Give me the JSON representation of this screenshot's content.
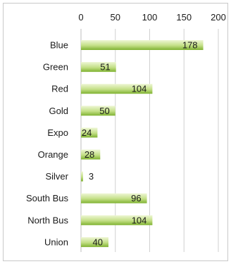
{
  "chart_data": {
    "type": "bar",
    "orientation": "horizontal",
    "title": "",
    "xlabel": "",
    "ylabel": "",
    "xlim": [
      0,
      200
    ],
    "x_ticks": [
      0,
      50,
      100,
      150,
      200
    ],
    "x_tick_labels": [
      "0",
      "50",
      "100",
      "150",
      "200"
    ],
    "x_axis_position": "top",
    "grid": true,
    "legend": "none",
    "categories": [
      "Blue",
      "Green",
      "Red",
      "Gold",
      "Expo",
      "Orange",
      "Silver",
      "South Bus",
      "North Bus",
      "Union"
    ],
    "values": [
      178,
      51,
      104,
      50,
      24,
      28,
      3,
      96,
      104,
      40
    ],
    "data_labels": [
      "178",
      "51",
      "104",
      "50",
      "24",
      "28",
      "3",
      "96",
      "104",
      "40"
    ],
    "colors": {
      "bar_light": "#e6f2c4",
      "bar_dark": "#8cbd3c",
      "grid": "#d0d0d0",
      "text": "#1a1a1a"
    }
  }
}
